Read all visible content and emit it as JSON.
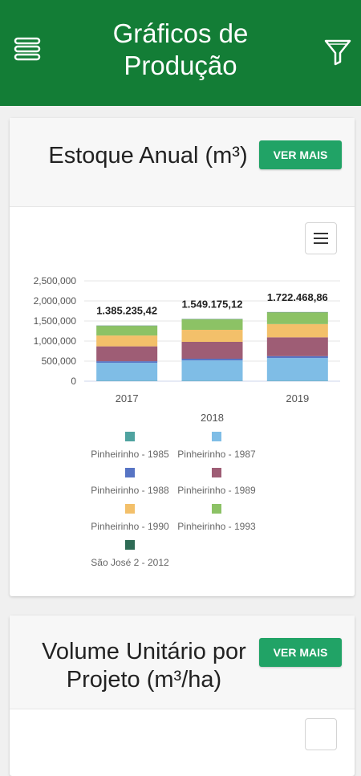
{
  "header": {
    "title_line1": "Gráficos de",
    "title_line2": "Produção",
    "menu_icon": "hamburger-menu-icon",
    "filter_icon": "filter-funnel-icon"
  },
  "colors": {
    "header_bg": "#137d36",
    "button_bg": "#21a366"
  },
  "cards": [
    {
      "title": "Estoque Anual (m³)",
      "button_label": "VER MAIS",
      "chart_menu_icon": "chart-menu-icon"
    },
    {
      "title_line1": "Volume Unitário por",
      "title_line2": "Projeto (m³/ha)",
      "button_label": "VER MAIS"
    }
  ],
  "chart_data": {
    "type": "bar",
    "stacked": true,
    "categories": [
      "2017",
      "2018",
      "2019"
    ],
    "xlabel": "",
    "ylabel": "",
    "ylim": [
      0,
      2500000
    ],
    "y_ticks": [
      "0",
      "500,000",
      "1,000,000",
      "1,500,000",
      "2,000,000",
      "2,500,000"
    ],
    "totals": [
      1385235.42,
      1549175.12,
      1722468.86
    ],
    "total_labels": [
      "1.385.235,42",
      "1.549.175,12",
      "1.722.468,86"
    ],
    "series": [
      {
        "name": "Pinheirinho - 1985",
        "color": "#4fa3a0",
        "values": [
          8000,
          8000,
          8000
        ]
      },
      {
        "name": "Pinheirinho - 1987",
        "color": "#7fbde6",
        "values": [
          450000,
          510000,
          570000
        ]
      },
      {
        "name": "Pinheirinho - 1988",
        "color": "#5774c4",
        "values": [
          40000,
          42000,
          45000
        ]
      },
      {
        "name": "Pinheirinho - 1989",
        "color": "#9e5d75",
        "values": [
          370000,
          420000,
          470000
        ]
      },
      {
        "name": "Pinheirinho - 1990",
        "color": "#f3c06a",
        "values": [
          270000,
          300000,
          330000
        ]
      },
      {
        "name": "Pinheirinho - 1993",
        "color": "#8cc265",
        "values": [
          239235.42,
          261175.12,
          291468.86
        ]
      },
      {
        "name": "São José 2 - 2012",
        "color": "#2e6b55",
        "values": [
          8000,
          8000,
          8000
        ]
      }
    ],
    "grid": true,
    "legend_position": "bottom"
  }
}
